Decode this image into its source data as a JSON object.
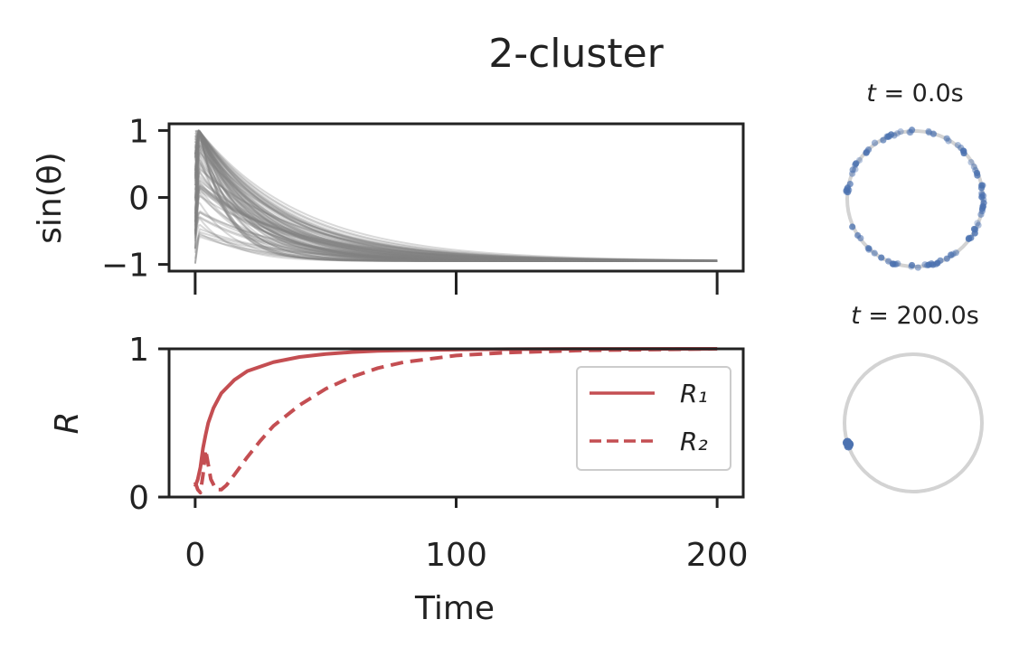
{
  "title": "2-cluster",
  "colors": {
    "trace": "#808080",
    "order_param": "#c44e52",
    "phase_dot": "#4c72b0",
    "ring": "#d3d3d3",
    "axis": "#222222"
  },
  "chart_data": [
    {
      "type": "line",
      "panel": "phase-sine",
      "ylabel": "sin(θ)",
      "xlim": [
        -10,
        210
      ],
      "ylim": [
        -1.1,
        1.1
      ],
      "yticks": [
        "1",
        "0",
        "−1"
      ],
      "ytick_values": [
        1,
        0,
        -1
      ],
      "xtick_values": [
        0,
        100,
        200
      ],
      "xtick_labels_shown": false,
      "n_traces": 100,
      "trace_alpha": 0.3,
      "final_value": -0.95,
      "decay_time_constant": 25,
      "grid": false
    },
    {
      "type": "line",
      "panel": "order-parameter",
      "xlabel": "Time",
      "ylabel": "R",
      "xlim": [
        -10,
        210
      ],
      "ylim": [
        0,
        1
      ],
      "xticks": [
        "0",
        "100",
        "200"
      ],
      "xtick_values": [
        0,
        100,
        200
      ],
      "yticks": [
        "1",
        "0"
      ],
      "ytick_values": [
        1,
        0
      ],
      "legend_position": "center-right",
      "grid": false,
      "series": [
        {
          "name": "R₁",
          "style": "solid",
          "x": [
            0,
            1,
            2,
            3,
            4,
            5,
            7,
            10,
            15,
            20,
            30,
            40,
            50,
            60,
            70,
            80,
            100,
            120,
            150,
            200
          ],
          "y": [
            0.07,
            0.12,
            0.2,
            0.33,
            0.42,
            0.5,
            0.6,
            0.7,
            0.79,
            0.85,
            0.91,
            0.945,
            0.965,
            0.978,
            0.986,
            0.99,
            0.995,
            0.998,
            0.999,
            1.0
          ]
        },
        {
          "name": "R₂",
          "style": "dashed",
          "x": [
            0,
            1,
            2,
            3,
            4,
            5,
            6,
            8,
            10,
            12,
            15,
            20,
            25,
            30,
            40,
            50,
            60,
            70,
            80,
            100,
            120,
            150,
            200
          ],
          "y": [
            0.1,
            0.05,
            0.03,
            0.15,
            0.32,
            0.22,
            0.12,
            0.05,
            0.05,
            0.08,
            0.15,
            0.27,
            0.38,
            0.48,
            0.62,
            0.73,
            0.81,
            0.87,
            0.91,
            0.955,
            0.975,
            0.99,
            1.0
          ]
        }
      ]
    },
    {
      "type": "scatter",
      "panel": "unit-circle-initial",
      "title": "t = 0.0s",
      "title_italic": "t",
      "title_rest": " = 0.0s",
      "time": 0.0,
      "xlim": [
        -1.1,
        1.1
      ],
      "ylim": [
        -1.1,
        1.1
      ],
      "n_points": 100,
      "distribution": "spread-around-circle"
    },
    {
      "type": "scatter",
      "panel": "unit-circle-final",
      "title": "t = 200.0s",
      "title_italic": "t",
      "title_rest": " = 200.0s",
      "time": 200.0,
      "xlim": [
        -1.1,
        1.1
      ],
      "ylim": [
        -1.1,
        1.1
      ],
      "points": [
        {
          "x": -0.95,
          "y": -0.3
        }
      ]
    }
  ]
}
